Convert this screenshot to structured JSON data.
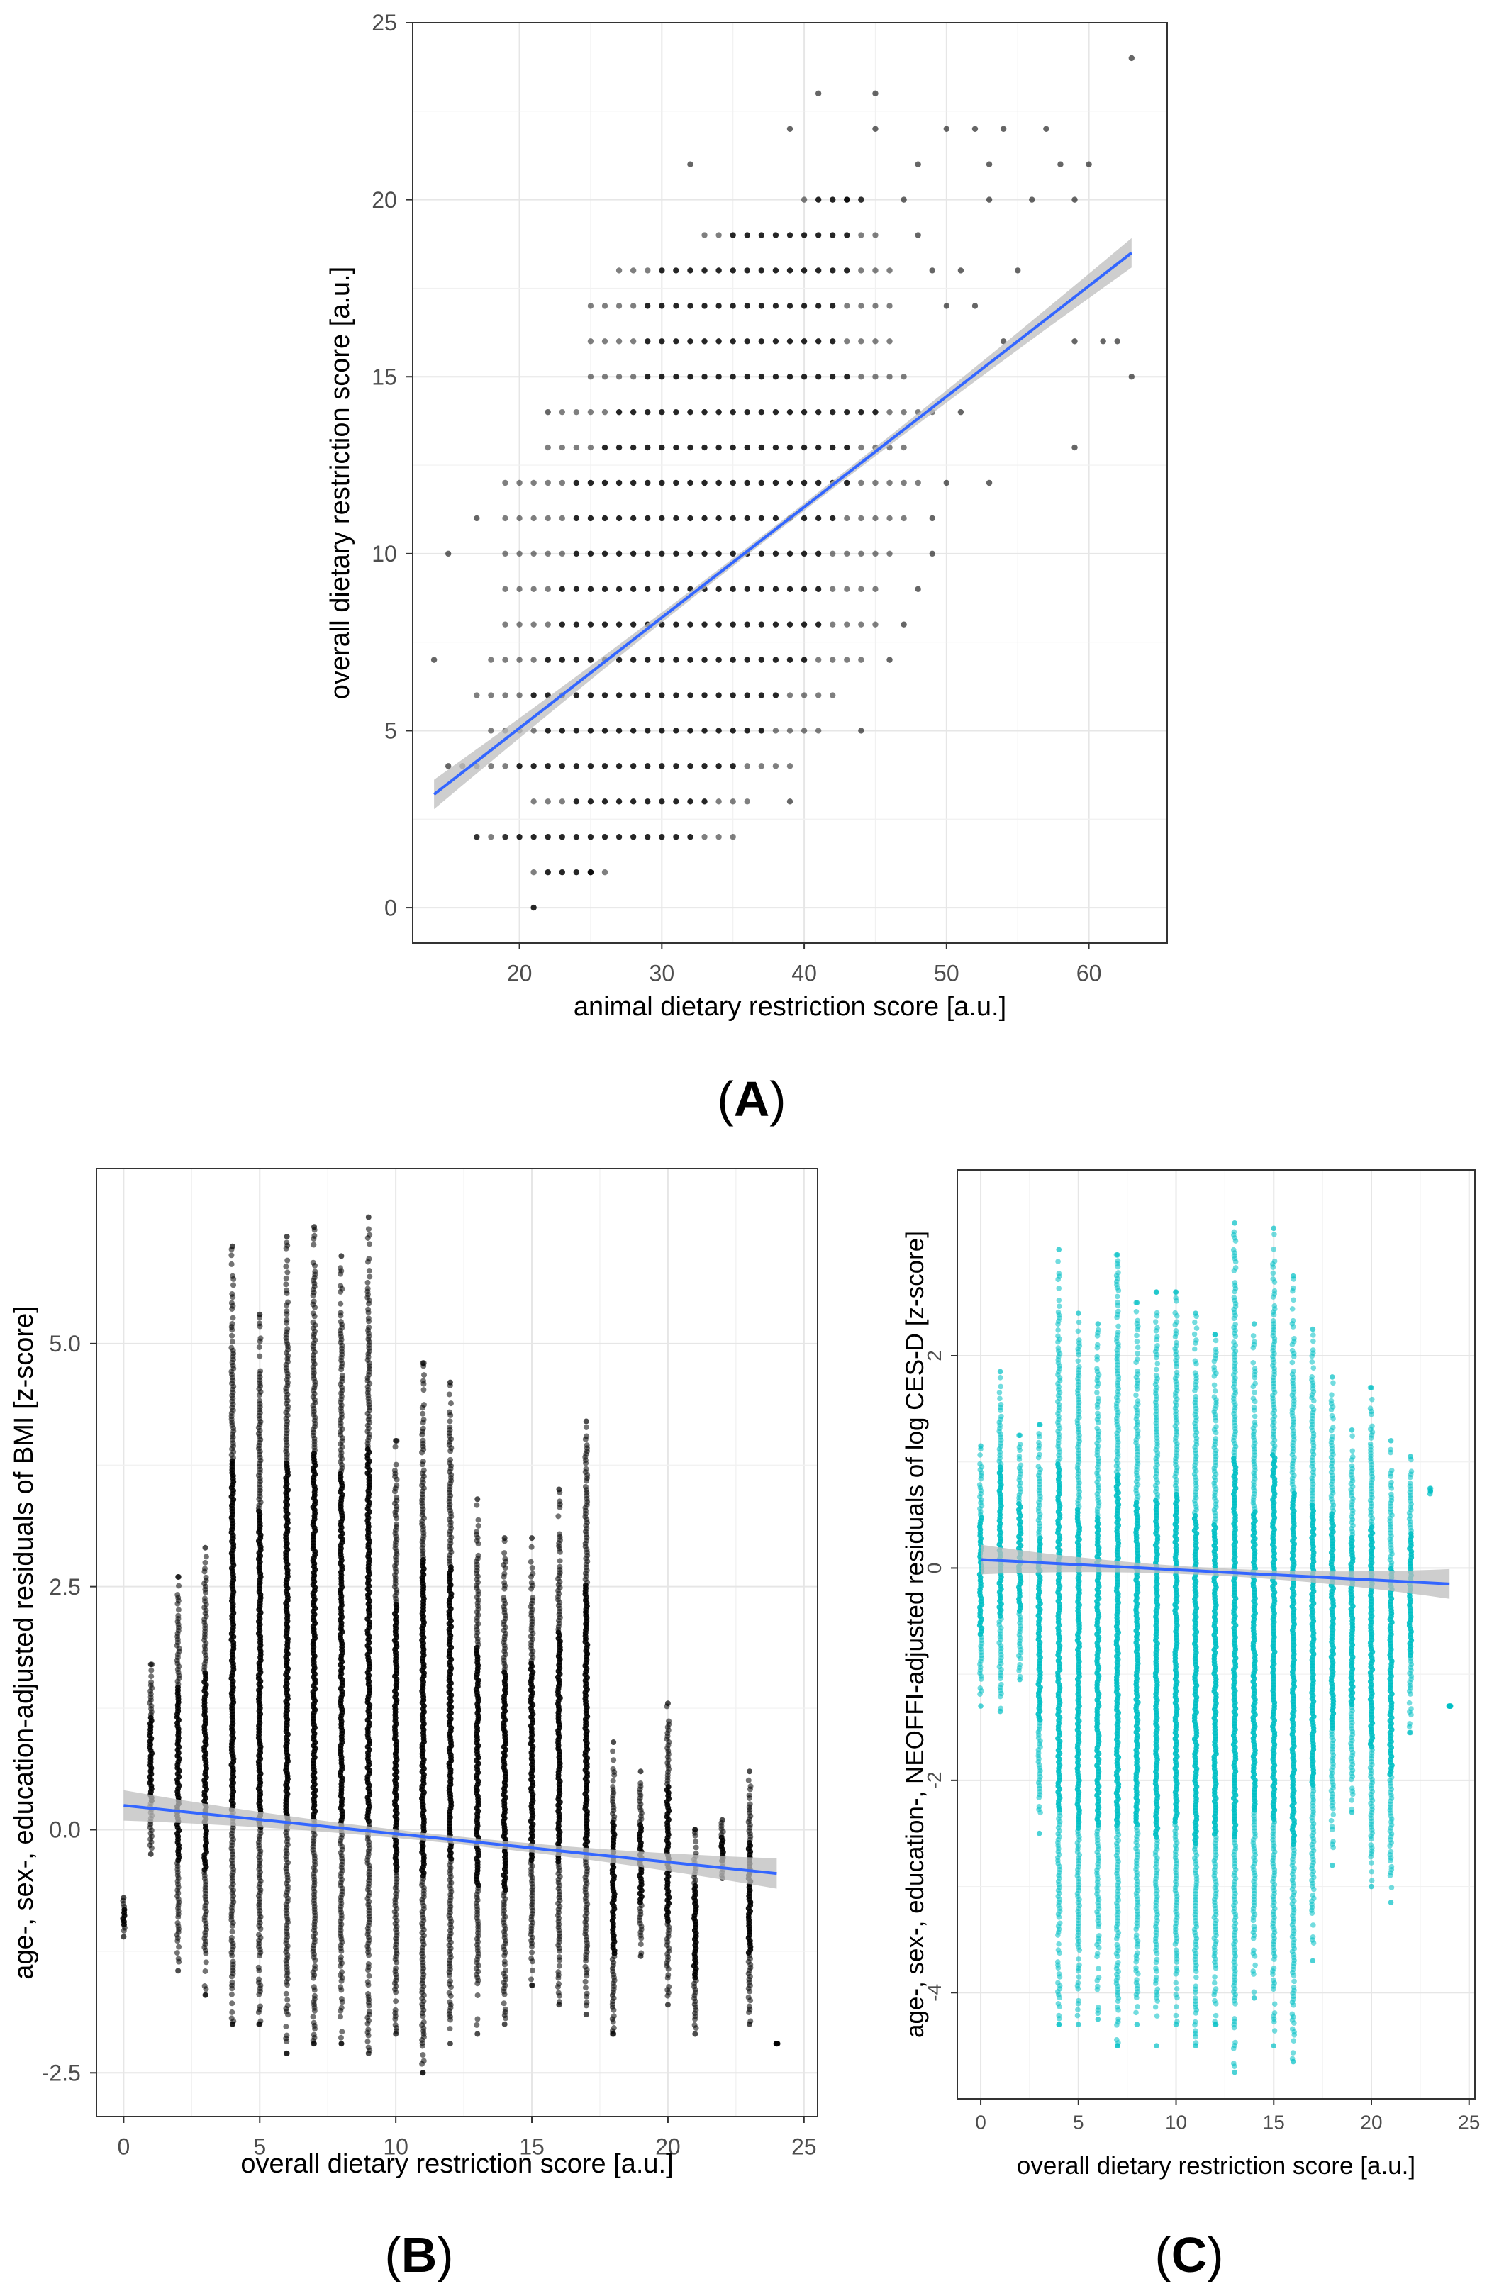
{
  "figure": {
    "panel_labels": [
      "A",
      "B",
      "C"
    ]
  },
  "chart_data": [
    {
      "panel": "A",
      "type": "scatter",
      "title": "",
      "xlabel": "animal dietary restriction score [a.u.]",
      "ylabel": "overall dietary restriction score [a.u.]",
      "xlim": [
        12.5,
        65.5
      ],
      "ylim": [
        -1.0,
        25.0
      ],
      "xticks": [
        20,
        30,
        40,
        50,
        60
      ],
      "yticks": [
        0,
        5,
        10,
        15,
        20,
        25
      ],
      "point_color": "#000000",
      "point_columns": [
        {
          "y": 0,
          "x": [
            21,
            21
          ]
        },
        {
          "y": 1,
          "x": [
            21,
            26
          ]
        },
        {
          "y": 2,
          "x": [
            17,
            35
          ]
        },
        {
          "y": 3,
          "x": [
            21,
            36
          ]
        },
        {
          "y": 4,
          "x": [
            16,
            39
          ]
        },
        {
          "y": 5,
          "x": [
            18,
            41
          ]
        },
        {
          "y": 6,
          "x": [
            17,
            42
          ]
        },
        {
          "y": 7,
          "x": [
            18,
            44
          ]
        },
        {
          "y": 8,
          "x": [
            19,
            45
          ]
        },
        {
          "y": 9,
          "x": [
            19,
            45
          ]
        },
        {
          "y": 10,
          "x": [
            19,
            46
          ]
        },
        {
          "y": 11,
          "x": [
            19,
            47
          ]
        },
        {
          "y": 12,
          "x": [
            19,
            48
          ]
        },
        {
          "y": 13,
          "x": [
            22,
            47
          ]
        },
        {
          "y": 14,
          "x": [
            23,
            49
          ]
        },
        {
          "y": 15,
          "x": [
            25,
            47
          ]
        },
        {
          "y": 16,
          "x": [
            25,
            46
          ]
        },
        {
          "y": 17,
          "x": [
            25,
            46
          ]
        },
        {
          "y": 18,
          "x": [
            27,
            46
          ]
        },
        {
          "y": 19,
          "x": [
            33,
            45
          ]
        },
        {
          "y": 20,
          "x": [
            40,
            44
          ]
        }
      ],
      "outliers": [
        [
          14,
          7
        ],
        [
          15,
          10
        ],
        [
          15,
          4
        ],
        [
          17,
          11
        ],
        [
          17,
          2
        ],
        [
          19,
          2
        ],
        [
          25,
          1
        ],
        [
          39,
          3
        ],
        [
          44,
          5
        ],
        [
          39,
          22
        ],
        [
          41,
          23
        ],
        [
          45,
          23
        ],
        [
          45,
          22
        ],
        [
          32,
          21
        ],
        [
          43,
          20
        ],
        [
          44,
          20
        ],
        [
          47,
          20
        ],
        [
          50,
          22
        ],
        [
          52,
          22
        ],
        [
          54,
          22
        ],
        [
          57,
          22
        ],
        [
          58,
          21
        ],
        [
          60,
          21
        ],
        [
          53,
          21
        ],
        [
          48,
          21
        ],
        [
          53,
          20
        ],
        [
          59,
          20
        ],
        [
          56,
          20
        ],
        [
          63,
          24
        ],
        [
          49,
          18
        ],
        [
          51,
          18
        ],
        [
          50,
          17
        ],
        [
          52,
          17
        ],
        [
          55,
          18
        ],
        [
          54,
          16
        ],
        [
          59,
          16
        ],
        [
          61,
          16
        ],
        [
          62,
          16
        ],
        [
          63,
          15
        ],
        [
          59,
          13
        ],
        [
          53,
          12
        ],
        [
          50,
          12
        ],
        [
          51,
          14
        ],
        [
          49,
          11
        ],
        [
          48,
          19
        ],
        [
          49,
          10
        ],
        [
          48,
          9
        ],
        [
          47,
          8
        ],
        [
          46,
          7
        ],
        [
          22,
          14
        ]
      ],
      "series": [
        {
          "name": "linear fit",
          "x": [
            14,
            63
          ],
          "y": [
            3.2,
            18.5
          ],
          "color": "#3366ff",
          "ci_color": "#bdbdbd"
        }
      ]
    },
    {
      "panel": "B",
      "type": "scatter",
      "title": "",
      "xlabel": "overall dietary restriction score [a.u.]",
      "ylabel": "age-, sex-, education-adjusted residuals of BMI [z-score]",
      "xlim": [
        -1.0,
        25.5
      ],
      "ylim": [
        -2.95,
        6.8
      ],
      "xticks": [
        0,
        5,
        10,
        15,
        20,
        25
      ],
      "ytick_labels": [
        "-2.5",
        "0.0",
        "2.5",
        "5.0"
      ],
      "point_color": "#000000",
      "point_columns": [
        {
          "x": 0,
          "y": [
            -1.1,
            -0.7
          ]
        },
        {
          "x": 1,
          "y": [
            -0.25,
            1.7
          ]
        },
        {
          "x": 2,
          "y": [
            -1.45,
            2.6
          ]
        },
        {
          "x": 3,
          "y": [
            -1.7,
            2.9
          ]
        },
        {
          "x": 4,
          "y": [
            -2.0,
            6.0
          ]
        },
        {
          "x": 5,
          "y": [
            -2.0,
            5.3
          ]
        },
        {
          "x": 6,
          "y": [
            -2.3,
            6.1
          ]
        },
        {
          "x": 7,
          "y": [
            -2.2,
            6.2
          ]
        },
        {
          "x": 8,
          "y": [
            -2.2,
            5.9
          ]
        },
        {
          "x": 9,
          "y": [
            -2.3,
            6.3
          ]
        },
        {
          "x": 10,
          "y": [
            -2.1,
            4.0
          ]
        },
        {
          "x": 11,
          "y": [
            -2.5,
            4.8
          ]
        },
        {
          "x": 12,
          "y": [
            -2.2,
            4.6
          ]
        },
        {
          "x": 13,
          "y": [
            -2.1,
            3.4
          ]
        },
        {
          "x": 14,
          "y": [
            -2.0,
            3.0
          ]
        },
        {
          "x": 15,
          "y": [
            -1.6,
            3.0
          ]
        },
        {
          "x": 16,
          "y": [
            -1.8,
            3.5
          ]
        },
        {
          "x": 17,
          "y": [
            -1.9,
            4.2
          ]
        },
        {
          "x": 18,
          "y": [
            -2.1,
            0.9
          ]
        },
        {
          "x": 19,
          "y": [
            -1.3,
            0.6
          ]
        },
        {
          "x": 20,
          "y": [
            -1.8,
            1.3
          ]
        },
        {
          "x": 21,
          "y": [
            -2.1,
            0.0
          ]
        },
        {
          "x": 22,
          "y": [
            -0.5,
            0.1
          ]
        },
        {
          "x": 23,
          "y": [
            -2.0,
            0.6
          ]
        },
        {
          "x": 24,
          "y": [
            -2.2,
            -2.2
          ]
        }
      ],
      "series": [
        {
          "name": "linear fit",
          "x": [
            0,
            24
          ],
          "y": [
            0.25,
            -0.45
          ],
          "color": "#3366ff",
          "ci_color": "#bdbdbd"
        }
      ]
    },
    {
      "panel": "C",
      "type": "scatter",
      "title": "",
      "xlabel": "overall dietary restriction score [a.u.]",
      "ylabel": "age-, sex-, education-, NEOFFI-adjusted residuals of log CES-D [z-score]",
      "xlim": [
        -1.2,
        25.3
      ],
      "ylim": [
        -5.0,
        3.75
      ],
      "xticks": [
        0,
        5,
        10,
        15,
        20,
        25
      ],
      "yticks": [
        -4,
        -2,
        0,
        2
      ],
      "point_color": "#00bfc4",
      "point_columns": [
        {
          "x": 0,
          "y": [
            -1.3,
            1.15
          ]
        },
        {
          "x": 1,
          "y": [
            -1.35,
            1.85
          ]
        },
        {
          "x": 2,
          "y": [
            -1.05,
            1.25
          ]
        },
        {
          "x": 3,
          "y": [
            -2.5,
            1.35
          ]
        },
        {
          "x": 4,
          "y": [
            -4.3,
            3.0
          ]
        },
        {
          "x": 5,
          "y": [
            -4.3,
            2.4
          ]
        },
        {
          "x": 6,
          "y": [
            -4.25,
            2.3
          ]
        },
        {
          "x": 7,
          "y": [
            -4.5,
            2.95
          ]
        },
        {
          "x": 8,
          "y": [
            -4.3,
            2.5
          ]
        },
        {
          "x": 9,
          "y": [
            -4.5,
            2.6
          ]
        },
        {
          "x": 10,
          "y": [
            -4.3,
            2.6
          ]
        },
        {
          "x": 11,
          "y": [
            -4.5,
            2.4
          ]
        },
        {
          "x": 12,
          "y": [
            -4.3,
            2.2
          ]
        },
        {
          "x": 13,
          "y": [
            -4.75,
            3.25
          ]
        },
        {
          "x": 14,
          "y": [
            -4.05,
            2.3
          ]
        },
        {
          "x": 15,
          "y": [
            -4.5,
            3.2
          ]
        },
        {
          "x": 16,
          "y": [
            -4.65,
            2.75
          ]
        },
        {
          "x": 17,
          "y": [
            -3.7,
            2.25
          ]
        },
        {
          "x": 18,
          "y": [
            -2.8,
            1.8
          ]
        },
        {
          "x": 19,
          "y": [
            -2.3,
            1.3
          ]
        },
        {
          "x": 20,
          "y": [
            -3.0,
            1.7
          ]
        },
        {
          "x": 21,
          "y": [
            -3.15,
            1.2
          ]
        },
        {
          "x": 22,
          "y": [
            -1.55,
            1.05
          ]
        },
        {
          "x": 23,
          "y": [
            0.7,
            0.75
          ]
        },
        {
          "x": 24,
          "y": [
            -1.3,
            -1.3
          ]
        }
      ],
      "series": [
        {
          "name": "linear fit",
          "x": [
            0,
            24
          ],
          "y": [
            0.08,
            -0.15
          ],
          "color": "#3366ff",
          "ci_color": "#bdbdbd"
        }
      ]
    }
  ]
}
